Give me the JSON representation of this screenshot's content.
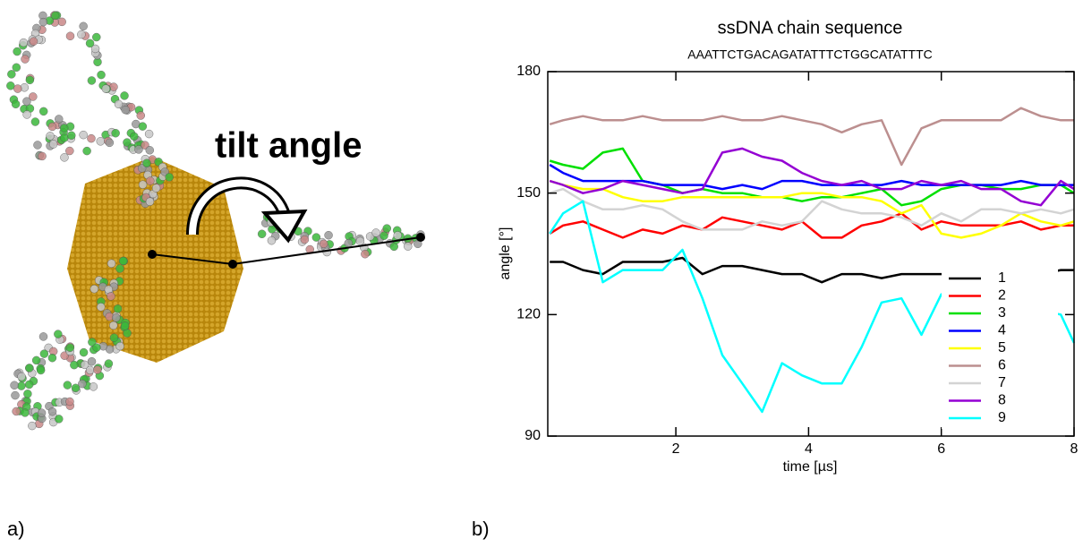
{
  "annotation": "tilt angle",
  "panel_labels": [
    "a)",
    "b)"
  ],
  "chart_data": {
    "type": "line",
    "title": "ssDNA chain sequence",
    "subtitle": "AAATTCTGACAGATATTTCTGGCATATTTC",
    "x_label": "time [µs]",
    "y_label": "angle [°]",
    "x": [
      0.1,
      0.3,
      0.6,
      0.9,
      1.2,
      1.5,
      1.8,
      2.1,
      2.4,
      2.7,
      3.0,
      3.3,
      3.6,
      3.9,
      4.2,
      4.5,
      4.8,
      5.1,
      5.4,
      5.7,
      6.0,
      6.3,
      6.6,
      6.9,
      7.2,
      7.5,
      7.8,
      8.0
    ],
    "xlim": [
      0.07,
      8
    ],
    "xticks": [
      2,
      4,
      6,
      8
    ],
    "ylim": [
      90,
      180
    ],
    "yticks": [
      90,
      120,
      150,
      180
    ],
    "legend": "lower right",
    "series": [
      {
        "name": "1",
        "color": "#000000",
        "values": [
          133,
          133,
          131,
          130,
          133,
          133,
          133,
          134,
          130,
          132,
          132,
          131,
          130,
          130,
          128,
          130,
          130,
          129,
          130,
          130,
          130,
          130,
          130,
          130,
          130,
          130,
          131,
          131
        ]
      },
      {
        "name": "2",
        "color": "#ff0000",
        "values": [
          140,
          142,
          143,
          141,
          139,
          141,
          140,
          142,
          141,
          144,
          143,
          142,
          141,
          143,
          139,
          139,
          142,
          143,
          145,
          141,
          143,
          142,
          142,
          142,
          143,
          141,
          142,
          142
        ]
      },
      {
        "name": "3",
        "color": "#00e000",
        "values": [
          158,
          157,
          156,
          160,
          161,
          153,
          152,
          150,
          151,
          150,
          150,
          149,
          149,
          148,
          149,
          149,
          150,
          151,
          147,
          148,
          151,
          152,
          152,
          151,
          151,
          152,
          152,
          150
        ]
      },
      {
        "name": "4",
        "color": "#0000ff",
        "values": [
          157,
          155,
          153,
          153,
          153,
          153,
          152,
          152,
          152,
          151,
          152,
          151,
          153,
          153,
          152,
          152,
          152,
          152,
          153,
          152,
          152,
          152,
          152,
          152,
          153,
          152,
          152,
          152
        ]
      },
      {
        "name": "5",
        "color": "#ffff00",
        "values": [
          153,
          152,
          151,
          151,
          149,
          148,
          148,
          149,
          149,
          149,
          149,
          149,
          149,
          150,
          150,
          149,
          149,
          148,
          145,
          147,
          140,
          139,
          140,
          142,
          145,
          143,
          142,
          143
        ]
      },
      {
        "name": "6",
        "color": "#bc8f8f",
        "values": [
          167,
          168,
          169,
          168,
          168,
          169,
          168,
          168,
          168,
          169,
          168,
          168,
          169,
          168,
          167,
          165,
          167,
          168,
          157,
          166,
          168,
          168,
          168,
          168,
          171,
          169,
          168,
          168
        ]
      },
      {
        "name": "7",
        "color": "#d3d3d3",
        "values": [
          150,
          151,
          148,
          146,
          146,
          147,
          146,
          143,
          141,
          141,
          141,
          143,
          142,
          143,
          148,
          146,
          145,
          145,
          144,
          142,
          145,
          143,
          146,
          146,
          145,
          146,
          145,
          146
        ]
      },
      {
        "name": "8",
        "color": "#9400d3",
        "values": [
          153,
          152,
          150,
          151,
          153,
          152,
          151,
          150,
          151,
          160,
          161,
          159,
          158,
          155,
          153,
          152,
          153,
          151,
          151,
          153,
          152,
          153,
          151,
          151,
          148,
          147,
          153,
          151
        ]
      },
      {
        "name": "9",
        "color": "#00ffff",
        "values": [
          140,
          145,
          148,
          128,
          131,
          131,
          131,
          136,
          124,
          110,
          103,
          96,
          108,
          105,
          103,
          103,
          112,
          123,
          124,
          115,
          125,
          123,
          123,
          123,
          122,
          121,
          120,
          113
        ]
      }
    ]
  }
}
